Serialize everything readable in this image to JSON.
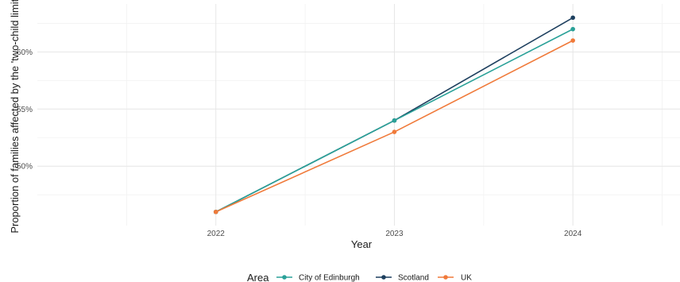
{
  "chart_data": {
    "type": "line",
    "x": [
      2022,
      2023,
      2024
    ],
    "xlabel": "Year",
    "ylabel": "Proportion of families affected by the 'two-child limit'",
    "xlim": [
      2021.0,
      2024.6
    ],
    "ylim": [
      44.8,
      64.2
    ],
    "y_ticks": [
      50,
      55,
      60
    ],
    "y_tick_labels": [
      "50%",
      "55%",
      "60%"
    ],
    "x_ticks": [
      2022,
      2023,
      2024
    ],
    "x_tick_labels": [
      "2022",
      "2023",
      "2024"
    ],
    "grid": true,
    "legend": {
      "title": "Area",
      "placement": "bottom"
    },
    "series": [
      {
        "name": "City of Edinburgh",
        "color": "#2aa198",
        "values": [
          46,
          54,
          62
        ]
      },
      {
        "name": "Scotland",
        "color": "#1d3f5e",
        "values": [
          46,
          54,
          63
        ]
      },
      {
        "name": "UK",
        "color": "#f07a3a",
        "values": [
          46,
          53,
          61
        ]
      }
    ]
  }
}
